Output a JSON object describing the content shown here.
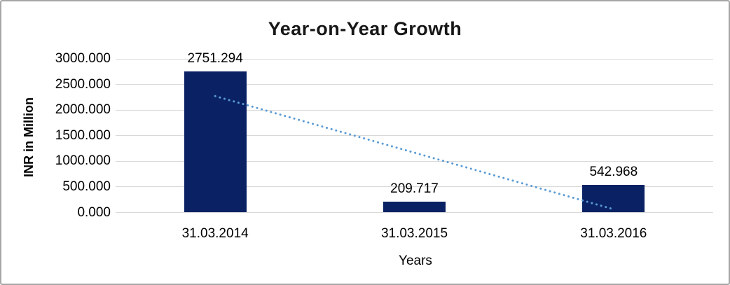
{
  "frame": {
    "background_color": "#ffffff",
    "border_color": "#a6a6a6"
  },
  "chart_data": {
    "type": "bar",
    "title": "Year-on-Year Growth",
    "xlabel": "Years",
    "ylabel": "INR in Million",
    "categories": [
      "31.03.2014",
      "31.03.2015",
      "31.03.2016"
    ],
    "values": [
      2751.294,
      209.717,
      542.968
    ],
    "data_labels": [
      "2751.294",
      "209.717",
      "542.968"
    ],
    "ylim": [
      0,
      3000
    ],
    "yticks": [
      {
        "value": 0,
        "label": "0.000"
      },
      {
        "value": 500,
        "label": "500.000"
      },
      {
        "value": 1000,
        "label": "1000.000"
      },
      {
        "value": 1500,
        "label": "1500.000"
      },
      {
        "value": 2000,
        "label": "2000.000"
      },
      {
        "value": 2500,
        "label": "2500.000"
      },
      {
        "value": 3000,
        "label": "3000.000"
      }
    ],
    "grid": true,
    "gridline_color": "#d9d9d9",
    "bar_color": "#0a2264",
    "text_color": "#000000",
    "legend_position": "none",
    "trendline": {
      "type": "linear",
      "style": "dotted",
      "color": "#5b9bd5",
      "points": [
        {
          "category_index": 0,
          "value": 2272.2
        },
        {
          "category_index": 2,
          "value": 63.8
        }
      ]
    }
  }
}
